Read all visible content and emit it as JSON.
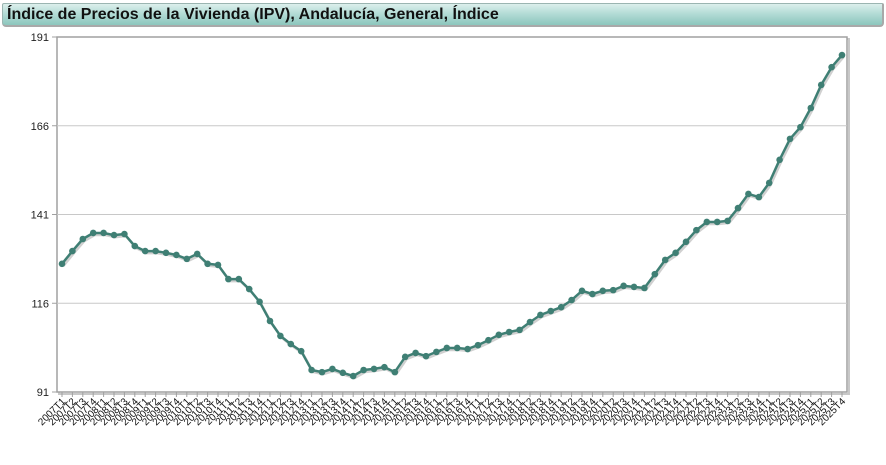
{
  "header": {
    "title": "Índice de Precios de la Vivienda (IPV), Andalucía, General, Índice"
  },
  "colors": {
    "line": "#3f7f74",
    "grid": "#c8c8c8",
    "axis": "#a0a0a0",
    "title_bg_top": "#dcefec",
    "title_bg_bottom": "#8cc6bd"
  },
  "chart_data": {
    "type": "line",
    "title": "Índice de Precios de la Vivienda (IPV), Andalucía, General, Índice",
    "xlabel": "",
    "ylabel": "",
    "ylim": [
      91,
      191
    ],
    "yticks": [
      91,
      116,
      141,
      166,
      191
    ],
    "grid": true,
    "legend": "none",
    "categories": [
      "2007T1",
      "2007T2",
      "2007T3",
      "2007T4",
      "2008T1",
      "2008T2",
      "2008T3",
      "2008T4",
      "2009T1",
      "2009T2",
      "2009T3",
      "2009T4",
      "2010T1",
      "2010T2",
      "2010T3",
      "2010T4",
      "2011T1",
      "2011T2",
      "2011T3",
      "2011T4",
      "2012T1",
      "2012T2",
      "2012T3",
      "2012T4",
      "2013T1",
      "2013T2",
      "2013T3",
      "2013T4",
      "2014T1",
      "2014T2",
      "2014T3",
      "2014T4",
      "2015T1",
      "2015T2",
      "2015T3",
      "2015T4",
      "2016T1",
      "2016T2",
      "2016T3",
      "2016T4",
      "2017T1",
      "2017T2",
      "2017T3",
      "2017T4",
      "2018T1",
      "2018T2",
      "2018T3",
      "2018T4",
      "2019T1",
      "2019T2",
      "2019T3",
      "2019T4",
      "2020T1",
      "2020T2",
      "2020T3",
      "2020T4",
      "2021T1",
      "2021T2",
      "2021T3",
      "2021T4",
      "2022T1",
      "2022T2",
      "2022T3",
      "2022T4",
      "2023T1",
      "2023T2",
      "2023T3",
      "2023T4",
      "2024T1",
      "2024T2",
      "2024T3",
      "2024T4",
      "2025T1",
      "2025T2",
      "2025T3",
      "2025T4"
    ],
    "series": [
      {
        "name": "Andalucía, General, Índice",
        "values": [
          127.1,
          130.7,
          134.1,
          135.8,
          135.8,
          135.2,
          135.5,
          132.1,
          130.7,
          130.7,
          130.2,
          129.6,
          128.5,
          129.9,
          127.1,
          126.8,
          122.8,
          122.8,
          120.0,
          116.4,
          111.0,
          106.8,
          104.5,
          102.5,
          97.2,
          96.6,
          97.5,
          96.4,
          95.5,
          97.2,
          97.5,
          98.0,
          96.6,
          100.9,
          102.0,
          101.1,
          102.3,
          103.4,
          103.4,
          103.1,
          104.2,
          105.6,
          107.1,
          107.9,
          108.5,
          110.7,
          112.7,
          113.8,
          114.9,
          116.9,
          119.5,
          118.6,
          119.5,
          119.7,
          120.9,
          120.6,
          120.3,
          124.2,
          128.2,
          130.2,
          133.3,
          136.6,
          138.9,
          138.9,
          139.2,
          142.8,
          146.8,
          145.9,
          149.9,
          156.4,
          162.3,
          165.6,
          171.0,
          177.5,
          182.5,
          185.9
        ]
      }
    ]
  }
}
